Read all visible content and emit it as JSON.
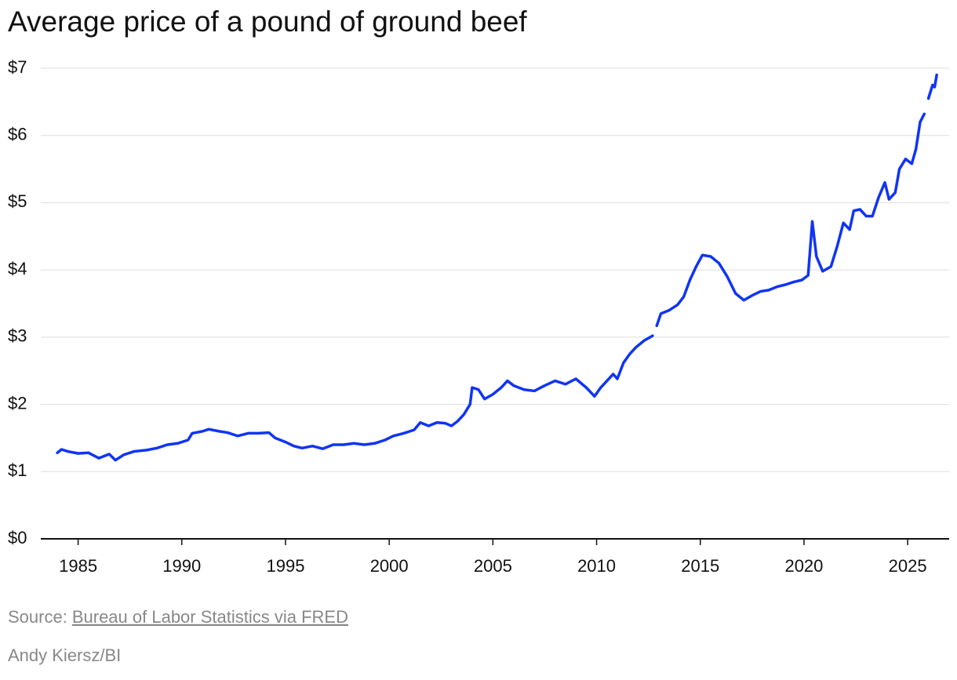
{
  "chart_data": {
    "type": "line",
    "title": "Average price of a pound of ground beef",
    "source_prefix": "Source:",
    "source_link": "Bureau of Labor Statistics via FRED",
    "credit": "Andy Kiersz/BI",
    "xlim": [
      1983.2,
      2027.0
    ],
    "xticks": [
      1985,
      1990,
      1995,
      2000,
      2005,
      2010,
      2015,
      2020,
      2025
    ],
    "ylim": [
      0,
      7
    ],
    "yticks": [
      {
        "value": 0,
        "label": "$0"
      },
      {
        "value": 1,
        "label": "$1"
      },
      {
        "value": 2,
        "label": "$2"
      },
      {
        "value": 3,
        "label": "$3"
      },
      {
        "value": 4,
        "label": "$4"
      },
      {
        "value": 5,
        "label": "$5"
      },
      {
        "value": 6,
        "label": "$6"
      },
      {
        "value": 7,
        "label": "$7"
      }
    ],
    "grid": true,
    "x": [
      1984.0,
      1984.2,
      1984.5,
      1985.0,
      1985.5,
      1986.0,
      1986.5,
      1986.8,
      1987.2,
      1987.7,
      1988.3,
      1988.8,
      1989.3,
      1989.8,
      1990.3,
      1990.5,
      1991.0,
      1991.3,
      1991.8,
      1992.2,
      1992.7,
      1993.2,
      1993.7,
      1994.2,
      1994.5,
      1995.0,
      1995.4,
      1995.8,
      1996.3,
      1996.8,
      1997.3,
      1997.8,
      1998.3,
      1998.8,
      1999.3,
      1999.8,
      2000.2,
      2000.7,
      2001.2,
      2001.5,
      2001.9,
      2002.3,
      2002.7,
      2003.0,
      2003.3,
      2003.6,
      2003.9,
      2004.0,
      2004.3,
      2004.6,
      2005.0,
      2005.4,
      2005.7,
      2006.0,
      2006.5,
      2007.0,
      2007.5,
      2008.0,
      2008.5,
      2009.0,
      2009.5,
      2009.9,
      2010.2,
      2010.5,
      2010.8,
      2011.0,
      2011.3,
      2011.6,
      2011.9,
      2012.3,
      2012.7,
      2012.8,
      2012.9,
      2013.1,
      2013.5,
      2013.9,
      2014.2,
      2014.5,
      2014.8,
      2015.1,
      2015.5,
      2015.9,
      2016.3,
      2016.7,
      2017.1,
      2017.5,
      2017.9,
      2018.3,
      2018.7,
      2019.1,
      2019.5,
      2019.9,
      2020.2,
      2020.4,
      2020.6,
      2020.9,
      2021.3,
      2021.6,
      2021.9,
      2022.2,
      2022.4,
      2022.7,
      2023.0,
      2023.3,
      2023.6,
      2023.9,
      2024.1,
      2024.4,
      2024.6,
      2024.9,
      2025.2,
      2025.4,
      2025.6,
      2025.8,
      2025.9,
      2026.0,
      2026.2,
      2026.3,
      2026.4
    ],
    "series": [
      {
        "color": "#1034f5",
        "values": [
          1.28,
          1.33,
          1.3,
          1.27,
          1.28,
          1.2,
          1.26,
          1.17,
          1.25,
          1.3,
          1.32,
          1.35,
          1.4,
          1.42,
          1.47,
          1.57,
          1.6,
          1.63,
          1.6,
          1.58,
          1.53,
          1.57,
          1.57,
          1.58,
          1.5,
          1.44,
          1.38,
          1.35,
          1.38,
          1.34,
          1.4,
          1.4,
          1.42,
          1.4,
          1.42,
          1.47,
          1.53,
          1.57,
          1.62,
          1.73,
          1.68,
          1.73,
          1.72,
          1.68,
          1.75,
          1.85,
          2.0,
          2.25,
          2.22,
          2.08,
          2.15,
          2.25,
          2.35,
          2.28,
          2.22,
          2.2,
          2.28,
          2.35,
          2.3,
          2.38,
          2.25,
          2.12,
          2.25,
          2.35,
          2.45,
          2.38,
          2.62,
          2.75,
          2.85,
          2.95,
          3.02,
          null,
          3.17,
          3.35,
          3.4,
          3.48,
          3.6,
          3.85,
          4.05,
          4.22,
          4.2,
          4.1,
          3.9,
          3.65,
          3.55,
          3.62,
          3.68,
          3.7,
          3.75,
          3.78,
          3.82,
          3.85,
          3.92,
          4.72,
          4.2,
          3.98,
          4.05,
          4.35,
          4.7,
          4.6,
          4.88,
          4.9,
          4.8,
          4.8,
          5.08,
          5.3,
          5.05,
          5.15,
          5.5,
          5.65,
          5.58,
          5.8,
          6.2,
          6.32,
          null,
          6.55,
          6.75,
          6.72,
          6.9
        ]
      }
    ]
  }
}
